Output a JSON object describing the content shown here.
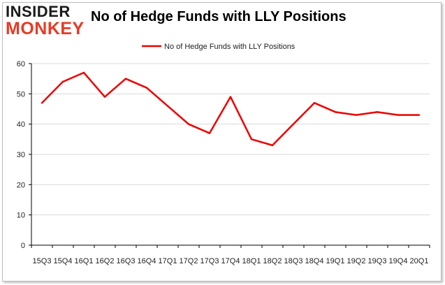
{
  "logo": {
    "line1": "INSIDER",
    "line2": "MONKEY"
  },
  "colors": {
    "series": "#ee0000",
    "grid": "#d9d9d9",
    "axis": "#000000",
    "logo_dark": "#1a1a1a",
    "logo_red": "#e83a25"
  },
  "chart_data": {
    "type": "line",
    "title": "No of Hedge Funds with LLY Positions",
    "categories": [
      "15Q3",
      "15Q4",
      "16Q1",
      "16Q2",
      "16Q3",
      "16Q4",
      "17Q1",
      "17Q2",
      "17Q3",
      "17Q4",
      "18Q1",
      "18Q2",
      "18Q3",
      "18Q4",
      "19Q1",
      "19Q2",
      "19Q3",
      "19Q4",
      "20Q1"
    ],
    "series": [
      {
        "name": "No of Hedge Funds with LLY Positions",
        "values": [
          47,
          54,
          57,
          49,
          55,
          52,
          46,
          40,
          37,
          49,
          35,
          33,
          40,
          47,
          44,
          43,
          44,
          43,
          43
        ]
      }
    ],
    "ylim": [
      0,
      60
    ],
    "yticks": [
      0,
      10,
      20,
      30,
      40,
      50,
      60
    ],
    "grid": true,
    "legend_position": "top",
    "xlabel": "",
    "ylabel": ""
  }
}
